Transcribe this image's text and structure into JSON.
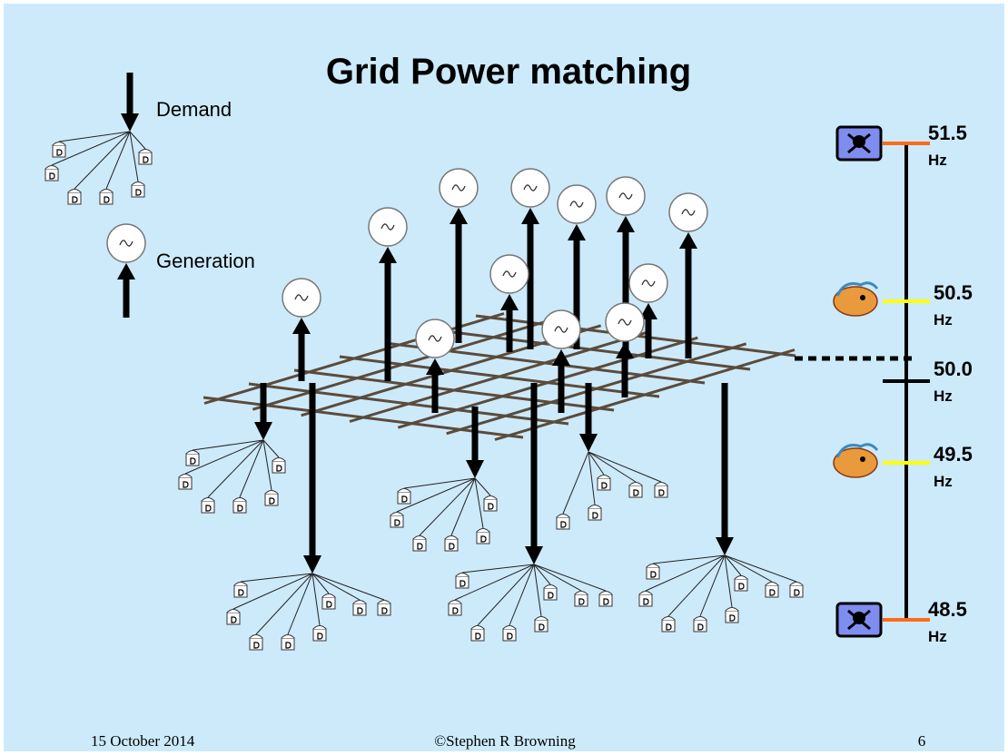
{
  "title": "Grid Power matching",
  "legend": {
    "demand": "Demand",
    "generation": "Generation"
  },
  "frequency_scale": {
    "levels": [
      {
        "value": "51.5",
        "unit": "Hz"
      },
      {
        "value": "50.5",
        "unit": "Hz"
      },
      {
        "value": "50.0",
        "unit": "Hz"
      },
      {
        "value": "49.5",
        "unit": "Hz"
      },
      {
        "value": "48.5",
        "unit": "Hz"
      }
    ]
  },
  "footer": {
    "date": "15 October 2014",
    "copyright": "©Stephen R Browning",
    "page": "6"
  }
}
